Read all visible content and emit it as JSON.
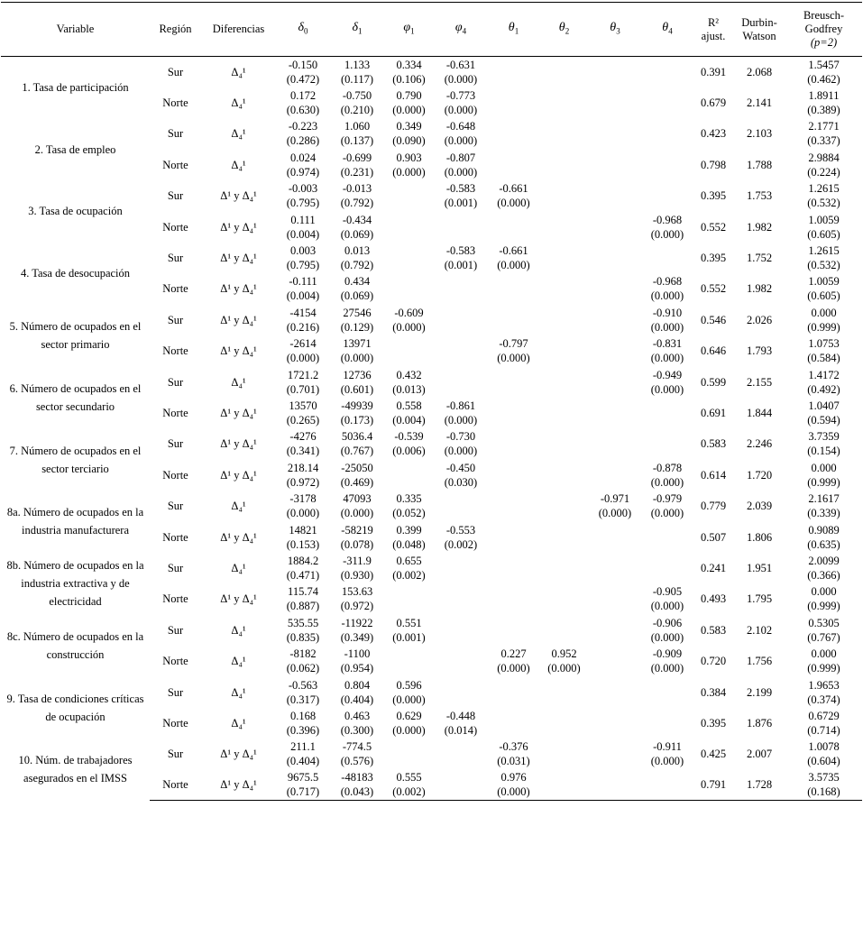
{
  "header": [
    {
      "text": "Variable"
    },
    {
      "text": "Región"
    },
    {
      "text": "Diferencias"
    },
    {
      "text": "δ",
      "sub": "0"
    },
    {
      "text": "δ",
      "sub": "1"
    },
    {
      "text": "φ",
      "sub": "1"
    },
    {
      "text": "φ",
      "sub": "4"
    },
    {
      "text": "θ",
      "sub": "1"
    },
    {
      "text": "θ",
      "sub": "2"
    },
    {
      "text": "θ",
      "sub": "3"
    },
    {
      "text": "θ",
      "sub": "4"
    },
    {
      "text": "R²",
      "line2": "ajust."
    },
    {
      "text": "Durbin-Watson"
    },
    {
      "text": "Breusch-Godfrey",
      "line2": "(p=2)"
    }
  ],
  "variables": [
    {
      "name": "1. Tasa de participación",
      "rows": [
        {
          "region": "Sur",
          "diff": "Δ₄¹",
          "coefs": [
            [
              "-0.150",
              "(0.472)"
            ],
            [
              "1.133",
              "(0.117)"
            ],
            [
              "0.334",
              "(0.106)"
            ],
            [
              "-0.631",
              "(0.000)"
            ],
            null,
            null,
            null,
            null
          ],
          "r2": "0.391",
          "dw": "2.068",
          "bg": [
            "1.5457",
            "(0.462)"
          ]
        },
        {
          "region": "Norte",
          "diff": "Δ₄¹",
          "coefs": [
            [
              "0.172",
              "(0.630)"
            ],
            [
              "-0.750",
              "(0.210)"
            ],
            [
              "0.790",
              "(0.000)"
            ],
            [
              "-0.773",
              "(0.000)"
            ],
            null,
            null,
            null,
            null
          ],
          "r2": "0.679",
          "dw": "2.141",
          "bg": [
            "1.8911",
            "(0.389)"
          ]
        }
      ]
    },
    {
      "name": "2. Tasa de empleo",
      "rows": [
        {
          "region": "Sur",
          "diff": "Δ₄¹",
          "coefs": [
            [
              "-0.223",
              "(0.286)"
            ],
            [
              "1.060",
              "(0.137)"
            ],
            [
              "0.349",
              "(0.090)"
            ],
            [
              "-0.648",
              "(0.000)"
            ],
            null,
            null,
            null,
            null
          ],
          "r2": "0.423",
          "dw": "2.103",
          "bg": [
            "2.1771",
            "(0.337)"
          ]
        },
        {
          "region": "Norte",
          "diff": "Δ₄¹",
          "coefs": [
            [
              "0.024",
              "(0.974)"
            ],
            [
              "-0.699",
              "(0.231)"
            ],
            [
              "0.903",
              "(0.000)"
            ],
            [
              "-0.807",
              "(0.000)"
            ],
            null,
            null,
            null,
            null
          ],
          "r2": "0.798",
          "dw": "1.788",
          "bg": [
            "2.9884",
            "(0.224)"
          ]
        }
      ]
    },
    {
      "name": "3. Tasa de ocupación",
      "rows": [
        {
          "region": "Sur",
          "diff": "Δ¹ y Δ₄¹",
          "coefs": [
            [
              "-0.003",
              "(0.795)"
            ],
            [
              "-0.013",
              "(0.792)"
            ],
            null,
            [
              "-0.583",
              "(0.001)"
            ],
            [
              "-0.661",
              "(0.000)"
            ],
            null,
            null,
            null
          ],
          "r2": "0.395",
          "dw": "1.753",
          "bg": [
            "1.2615",
            "(0.532)"
          ]
        },
        {
          "region": "Norte",
          "diff": "Δ¹ y Δ₄¹",
          "coefs": [
            [
              "0.111",
              "(0.004)"
            ],
            [
              "-0.434",
              "(0.069)"
            ],
            null,
            null,
            null,
            null,
            null,
            [
              "-0.968",
              "(0.000)"
            ]
          ],
          "r2": "0.552",
          "dw": "1.982",
          "bg": [
            "1.0059",
            "(0.605)"
          ]
        }
      ]
    },
    {
      "name": "4. Tasa de desocupación",
      "rows": [
        {
          "region": "Sur",
          "diff": "Δ¹ y Δ₄¹",
          "coefs": [
            [
              "0.003",
              "(0.795)"
            ],
            [
              "0.013",
              "(0.792)"
            ],
            null,
            [
              "-0.583",
              "(0.001)"
            ],
            [
              "-0.661",
              "(0.000)"
            ],
            null,
            null,
            null
          ],
          "r2": "0.395",
          "dw": "1.752",
          "bg": [
            "1.2615",
            "(0.532)"
          ]
        },
        {
          "region": "Norte",
          "diff": "Δ¹ y Δ₄¹",
          "coefs": [
            [
              "-0.111",
              "(0.004)"
            ],
            [
              "0.434",
              "(0.069)"
            ],
            null,
            null,
            null,
            null,
            null,
            [
              "-0.968",
              "(0.000)"
            ]
          ],
          "r2": "0.552",
          "dw": "1.982",
          "bg": [
            "1.0059",
            "(0.605)"
          ]
        }
      ]
    },
    {
      "name": "5. Número de ocupados en el sector primario",
      "rows": [
        {
          "region": "Sur",
          "diff": "Δ¹ y Δ₄¹",
          "coefs": [
            [
              "-4154",
              "(0.216)"
            ],
            [
              "27546",
              "(0.129)"
            ],
            [
              "-0.609",
              "(0.000)"
            ],
            null,
            null,
            null,
            null,
            [
              "-0.910",
              "(0.000)"
            ]
          ],
          "r2": "0.546",
          "dw": "2.026",
          "bg": [
            "0.000",
            "(0.999)"
          ]
        },
        {
          "region": "Norte",
          "diff": "Δ¹ y Δ₄¹",
          "coefs": [
            [
              "-2614",
              "(0.000)"
            ],
            [
              "13971",
              "(0.000)"
            ],
            null,
            null,
            [
              "-0.797",
              "(0.000)"
            ],
            null,
            null,
            [
              "-0.831",
              "(0.000)"
            ]
          ],
          "r2": "0.646",
          "dw": "1.793",
          "bg": [
            "1.0753",
            "(0.584)"
          ]
        }
      ]
    },
    {
      "name": "6. Número de ocupados en el sector secundario",
      "rows": [
        {
          "region": "Sur",
          "diff": "Δ₄¹",
          "coefs": [
            [
              "1721.2",
              "(0.701)"
            ],
            [
              "12736",
              "(0.601)"
            ],
            [
              "0.432",
              "(0.013)"
            ],
            null,
            null,
            null,
            null,
            [
              "-0.949",
              "(0.000)"
            ]
          ],
          "r2": "0.599",
          "dw": "2.155",
          "bg": [
            "1.4172",
            "(0.492)"
          ]
        },
        {
          "region": "Norte",
          "diff": "Δ¹ y Δ₄¹",
          "coefs": [
            [
              "13570",
              "(0.265)"
            ],
            [
              "-49939",
              "(0.173)"
            ],
            [
              "0.558",
              "(0.004)"
            ],
            [
              "-0.861",
              "(0.000)"
            ],
            null,
            null,
            null,
            null
          ],
          "r2": "0.691",
          "dw": "1.844",
          "bg": [
            "1.0407",
            "(0.594)"
          ]
        }
      ]
    },
    {
      "name": "7. Número de ocupados en el sector terciario",
      "rows": [
        {
          "region": "Sur",
          "diff": "Δ¹ y Δ₄¹",
          "coefs": [
            [
              "-4276",
              "(0.341)"
            ],
            [
              "5036.4",
              "(0.767)"
            ],
            [
              "-0.539",
              "(0.006)"
            ],
            [
              "-0.730",
              "(0.000)"
            ],
            null,
            null,
            null,
            null
          ],
          "r2": "0.583",
          "dw": "2.246",
          "bg": [
            "3.7359",
            "(0.154)"
          ]
        },
        {
          "region": "Norte",
          "diff": "Δ¹ y Δ₄¹",
          "coefs": [
            [
              "218.14",
              "(0.972)"
            ],
            [
              "-25050",
              "(0.469)"
            ],
            null,
            [
              "-0.450",
              "(0.030)"
            ],
            null,
            null,
            null,
            [
              "-0.878",
              "(0.000)"
            ]
          ],
          "r2": "0.614",
          "dw": "1.720",
          "bg": [
            "0.000",
            "(0.999)"
          ]
        }
      ]
    },
    {
      "name": "8a. Número de ocupados en la industria manufacturera",
      "rows": [
        {
          "region": "Sur",
          "diff": "Δ₄¹",
          "coefs": [
            [
              "-3178",
              "(0.000)"
            ],
            [
              "47093",
              "(0.000)"
            ],
            [
              "0.335",
              "(0.052)"
            ],
            null,
            null,
            null,
            [
              "-0.971",
              "(0.000)"
            ],
            [
              "-0.979",
              "(0.000)"
            ]
          ],
          "r2": "0.779",
          "dw": "2.039",
          "bg": [
            "2.1617",
            "(0.339)"
          ]
        },
        {
          "region": "Norte",
          "diff": "Δ¹ y Δ₄¹",
          "coefs": [
            [
              "14821",
              "(0.153)"
            ],
            [
              "-58219",
              "(0.078)"
            ],
            [
              "0.399",
              "(0.048)"
            ],
            [
              "-0.553",
              "(0.002)"
            ],
            null,
            null,
            null,
            null
          ],
          "r2": "0.507",
          "dw": "1.806",
          "bg": [
            "0.9089",
            "(0.635)"
          ]
        }
      ]
    },
    {
      "name": "8b. Número de ocupados en la industria extractiva y de electricidad",
      "rows": [
        {
          "region": "Sur",
          "diff": "Δ₄¹",
          "coefs": [
            [
              "1884.2",
              "(0.471)"
            ],
            [
              "-311.9",
              "(0.930)"
            ],
            [
              "0.655",
              "(0.002)"
            ],
            null,
            null,
            null,
            null,
            null
          ],
          "r2": "0.241",
          "dw": "1.951",
          "bg": [
            "2.0099",
            "(0.366)"
          ]
        },
        {
          "region": "Norte",
          "diff": "Δ¹ y Δ₄¹",
          "coefs": [
            [
              "115.74",
              "(0.887)"
            ],
            [
              "153.63",
              "(0.972)"
            ],
            null,
            null,
            null,
            null,
            null,
            [
              "-0.905",
              "(0.000)"
            ]
          ],
          "r2": "0.493",
          "dw": "1.795",
          "bg": [
            "0.000",
            "(0.999)"
          ]
        }
      ]
    },
    {
      "name": "8c. Número de ocupados en la construcción",
      "rows": [
        {
          "region": "Sur",
          "diff": "Δ₄¹",
          "coefs": [
            [
              "535.55",
              "(0.835)"
            ],
            [
              "-11922",
              "(0.349)"
            ],
            [
              "0.551",
              "(0.001)"
            ],
            null,
            null,
            null,
            null,
            [
              "-0.906",
              "(0.000)"
            ]
          ],
          "r2": "0.583",
          "dw": "2.102",
          "bg": [
            "0.5305",
            "(0.767)"
          ]
        },
        {
          "region": "Norte",
          "diff": "Δ₄¹",
          "coefs": [
            [
              "-8182",
              "(0.062)"
            ],
            [
              "-1100",
              "(0.954)"
            ],
            null,
            null,
            [
              "0.227",
              "(0.000)"
            ],
            [
              "0.952",
              "(0.000)"
            ],
            null,
            [
              "-0.909",
              "(0.000)"
            ]
          ],
          "r2": "0.720",
          "dw": "1.756",
          "bg": [
            "0.000",
            "(0.999)"
          ]
        }
      ]
    },
    {
      "name": "9. Tasa de condiciones críticas de ocupación",
      "rows": [
        {
          "region": "Sur",
          "diff": "Δ₄¹",
          "coefs": [
            [
              "-0.563",
              "(0.317)"
            ],
            [
              "0.804",
              "(0.404)"
            ],
            [
              "0.596",
              "(0.000)"
            ],
            null,
            null,
            null,
            null,
            null
          ],
          "r2": "0.384",
          "dw": "2.199",
          "bg": [
            "1.9653",
            "(0.374)"
          ]
        },
        {
          "region": "Norte",
          "diff": "Δ₄¹",
          "coefs": [
            [
              "0.168",
              "(0.396)"
            ],
            [
              "0.463",
              "(0.300)"
            ],
            [
              "0.629",
              "(0.000)"
            ],
            [
              "-0.448",
              "(0.014)"
            ],
            null,
            null,
            null,
            null
          ],
          "r2": "0.395",
          "dw": "1.876",
          "bg": [
            "0.6729",
            "(0.714)"
          ]
        }
      ]
    },
    {
      "name": "10. Núm. de trabajadores asegurados en el IMSS",
      "rows": [
        {
          "region": "Sur",
          "diff": "Δ¹ y Δ₄¹",
          "coefs": [
            [
              "211.1",
              "(0.404)"
            ],
            [
              "-774.5",
              "(0.576)"
            ],
            null,
            null,
            [
              "-0.376",
              "(0.031)"
            ],
            null,
            null,
            [
              "-0.911",
              "(0.000)"
            ]
          ],
          "r2": "0.425",
          "dw": "2.007",
          "bg": [
            "1.0078",
            "(0.604)"
          ]
        },
        {
          "region": "Norte",
          "diff": "Δ¹ y Δ₄¹",
          "coefs": [
            [
              "9675.5",
              "(0.717)"
            ],
            [
              "-48183",
              "(0.043)"
            ],
            [
              "0.555",
              "(0.002)"
            ],
            null,
            [
              "0.976",
              "(0.000)"
            ],
            null,
            null,
            null
          ],
          "r2": "0.791",
          "dw": "1.728",
          "bg": [
            "3.5735",
            "(0.168)"
          ]
        }
      ]
    }
  ]
}
